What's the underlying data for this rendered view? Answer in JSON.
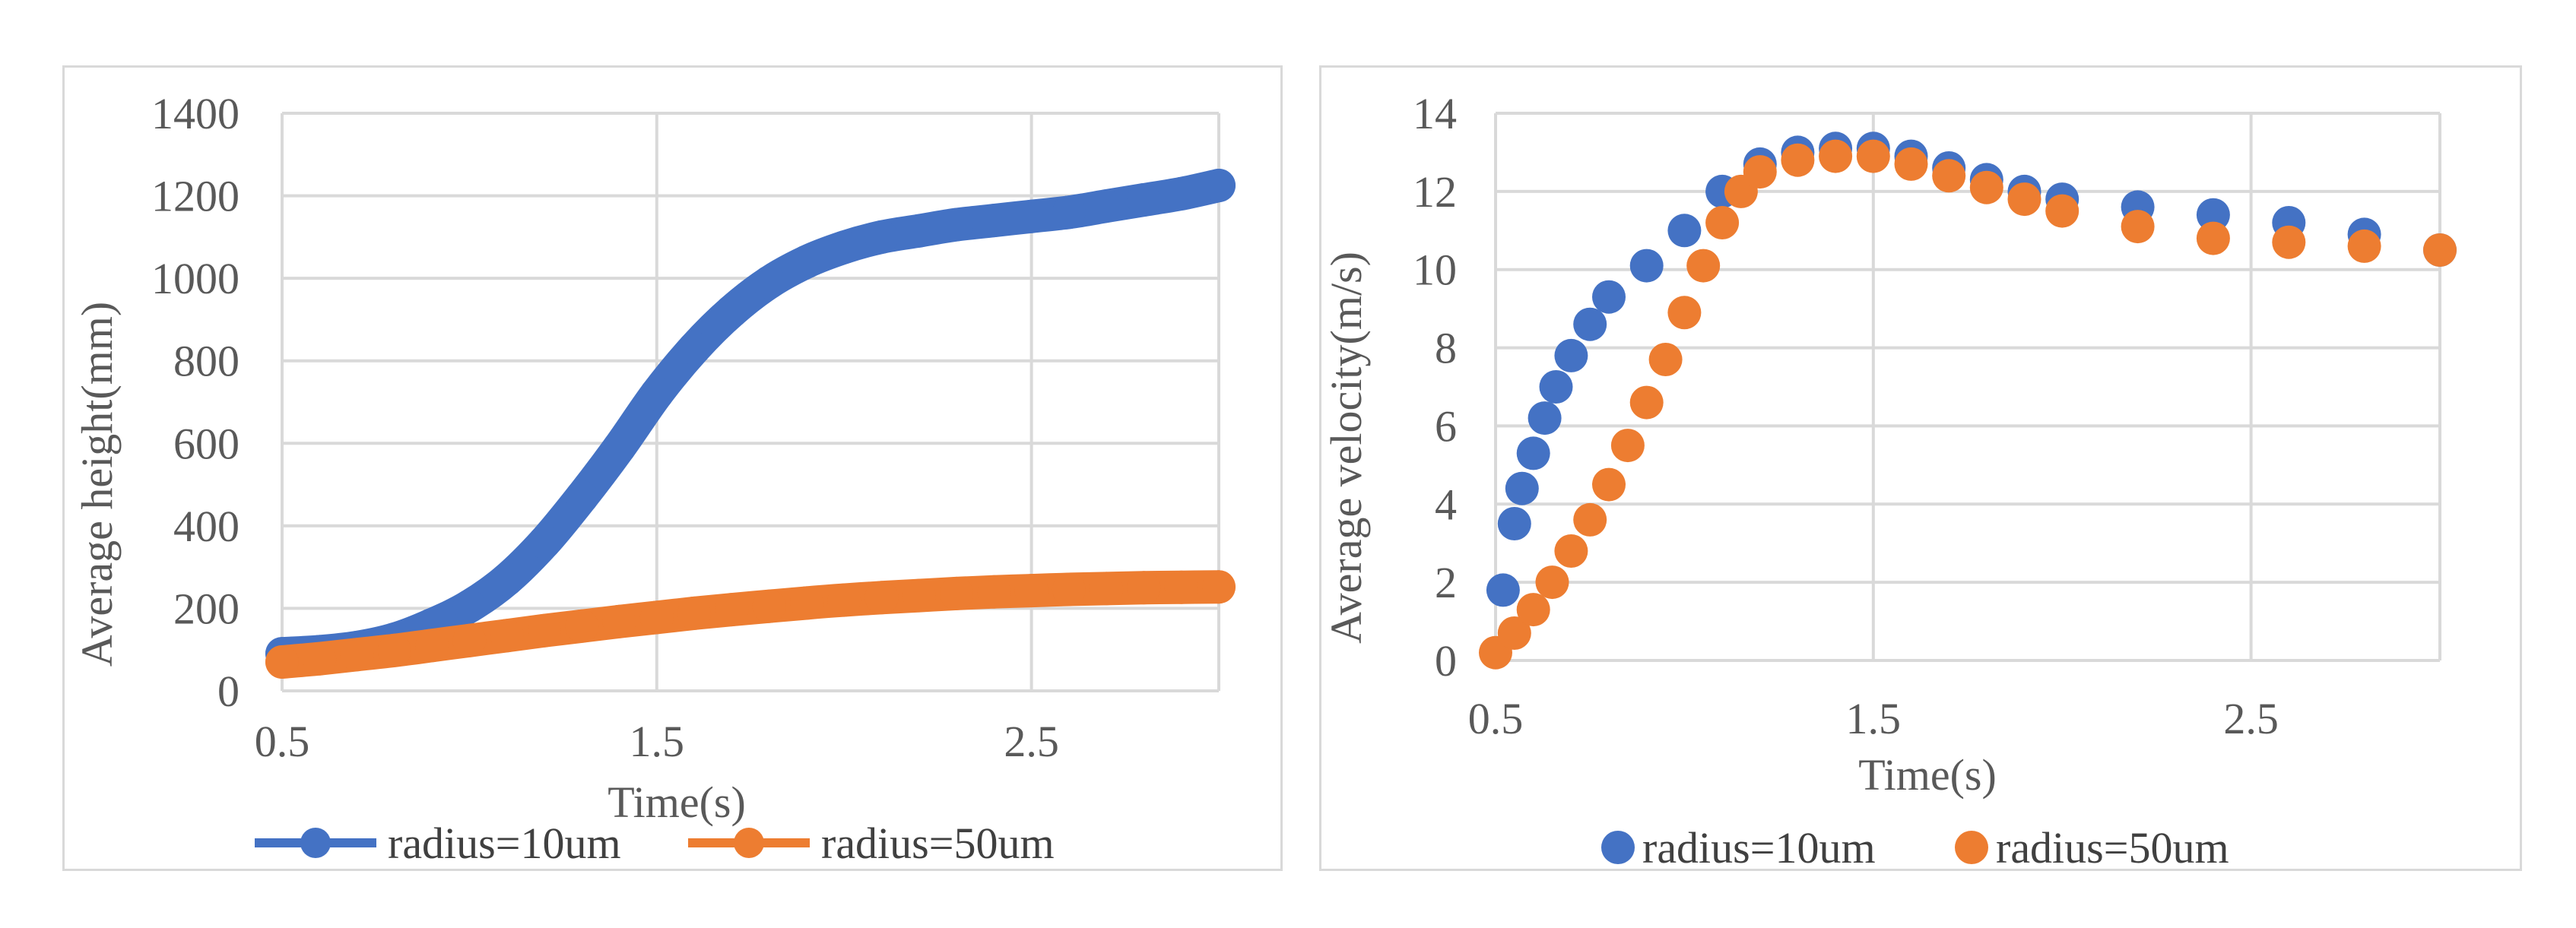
{
  "chart_data": [
    {
      "type": "line",
      "xlabel": "Time(s)",
      "ylabel": "Average height(mm)",
      "xlim": [
        0.5,
        3.0
      ],
      "ylim": [
        0,
        1400
      ],
      "xticks": [
        "0.5",
        "1.5",
        "2.5"
      ],
      "xtick_values": [
        0.5,
        1.5,
        2.5
      ],
      "yticks": [
        "0",
        "200",
        "400",
        "600",
        "800",
        "1000",
        "1200",
        "1400"
      ],
      "ytick_values": [
        0,
        200,
        400,
        600,
        800,
        1000,
        1200,
        1400
      ],
      "grid": true,
      "legend_position": "bottom",
      "series": [
        {
          "name": "radius=10um",
          "color": "#4472C4",
          "marker": "circle",
          "line": true,
          "x": [
            0.5,
            0.6,
            0.7,
            0.8,
            0.9,
            1.0,
            1.1,
            1.2,
            1.3,
            1.4,
            1.5,
            1.6,
            1.7,
            1.8,
            1.9,
            2.0,
            2.1,
            2.2,
            2.3,
            2.4,
            2.5,
            2.6,
            2.7,
            2.8,
            2.9,
            3.0
          ],
          "y": [
            90,
            95,
            105,
            125,
            160,
            205,
            270,
            360,
            470,
            590,
            720,
            830,
            920,
            990,
            1040,
            1075,
            1100,
            1115,
            1130,
            1140,
            1150,
            1160,
            1175,
            1190,
            1205,
            1225
          ]
        },
        {
          "name": "radius=50um",
          "color": "#ED7D31",
          "marker": "circle",
          "line": true,
          "x": [
            0.5,
            0.6,
            0.7,
            0.8,
            0.9,
            1.0,
            1.1,
            1.2,
            1.3,
            1.4,
            1.5,
            1.6,
            1.7,
            1.8,
            1.9,
            2.0,
            2.1,
            2.2,
            2.3,
            2.4,
            2.5,
            2.6,
            2.7,
            2.8,
            2.9,
            3.0
          ],
          "y": [
            70,
            78,
            88,
            98,
            110,
            122,
            134,
            146,
            157,
            168,
            178,
            188,
            197,
            205,
            213,
            220,
            226,
            231,
            236,
            240,
            243,
            246,
            248,
            250,
            251,
            252
          ]
        }
      ]
    },
    {
      "type": "scatter",
      "xlabel": "Time(s)",
      "ylabel": "Average velocity(m/s)",
      "xlim": [
        0.5,
        3.0
      ],
      "ylim": [
        0,
        14
      ],
      "xticks": [
        "0.5",
        "1.5",
        "2.5"
      ],
      "xtick_values": [
        0.5,
        1.5,
        2.5
      ],
      "yticks": [
        "0",
        "2",
        "4",
        "6",
        "8",
        "10",
        "12",
        "14"
      ],
      "ytick_values": [
        0,
        2,
        4,
        6,
        8,
        10,
        12,
        14
      ],
      "grid": true,
      "legend_position": "bottom",
      "series": [
        {
          "name": "radius=10um",
          "color": "#4472C4",
          "marker": "circle",
          "line": false,
          "x": [
            0.52,
            0.55,
            0.57,
            0.6,
            0.63,
            0.66,
            0.7,
            0.75,
            0.8,
            0.9,
            1.0,
            1.1,
            1.2,
            1.3,
            1.4,
            1.5,
            1.6,
            1.7,
            1.8,
            1.9,
            2.0,
            2.2,
            2.4,
            2.6,
            2.8,
            3.0
          ],
          "y": [
            1.8,
            3.5,
            4.4,
            5.3,
            6.2,
            7.0,
            7.8,
            8.6,
            9.3,
            10.1,
            11.0,
            12.0,
            12.7,
            13.0,
            13.1,
            13.1,
            12.9,
            12.6,
            12.3,
            12.0,
            11.8,
            11.6,
            11.4,
            11.2,
            10.9,
            10.5
          ]
        },
        {
          "name": "radius=50um",
          "color": "#ED7D31",
          "marker": "circle",
          "line": false,
          "x": [
            0.5,
            0.55,
            0.6,
            0.65,
            0.7,
            0.75,
            0.8,
            0.85,
            0.9,
            0.95,
            1.0,
            1.05,
            1.1,
            1.15,
            1.2,
            1.3,
            1.4,
            1.5,
            1.6,
            1.7,
            1.8,
            1.9,
            2.0,
            2.2,
            2.4,
            2.6,
            2.8,
            3.0
          ],
          "y": [
            0.2,
            0.7,
            1.3,
            2.0,
            2.8,
            3.6,
            4.5,
            5.5,
            6.6,
            7.7,
            8.9,
            10.1,
            11.2,
            12.0,
            12.5,
            12.8,
            12.9,
            12.9,
            12.7,
            12.4,
            12.1,
            11.8,
            11.5,
            11.1,
            10.8,
            10.7,
            10.6,
            10.5
          ]
        }
      ]
    }
  ]
}
